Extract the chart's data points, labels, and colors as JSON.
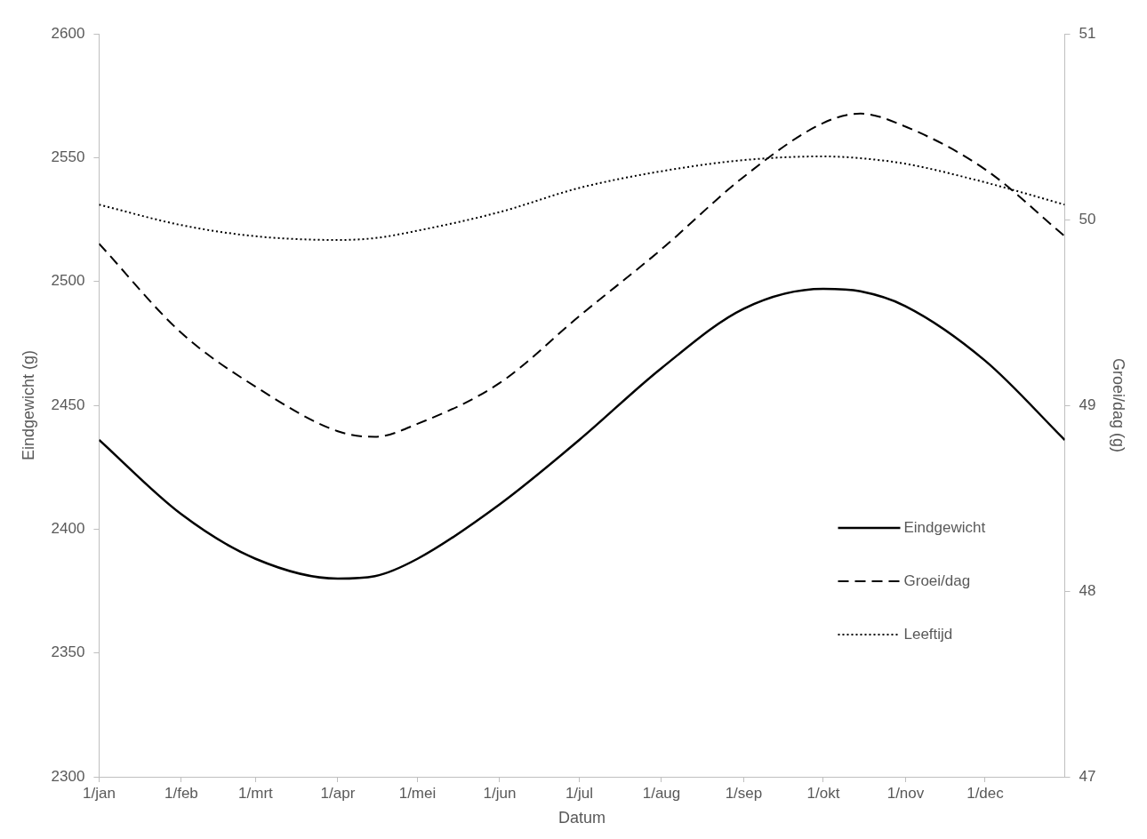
{
  "chart_data": {
    "type": "line",
    "xlabel": "Datum",
    "ylabel": "Eindgewicht (g)",
    "y2label": "Groei/dag (g)",
    "x": [
      "--01-01",
      "--02-01",
      "--03-01",
      "--04-01",
      "--04-15",
      "--05-01",
      "--06-01",
      "--07-01",
      "--08-01",
      "--09-01",
      "--10-01",
      "--10-15",
      "--11-01",
      "--12-01",
      "--12-31"
    ],
    "series": [
      {
        "name": "Eindgewicht",
        "color": "#000000",
        "line_style": "solid",
        "values": [
          2436,
          2406,
          2388,
          2380,
          2381,
          2388,
          2410,
          2436,
          2465,
          2489,
          2497,
          2496,
          2490,
          2468,
          2436
        ]
      },
      {
        "name": "Groei/dag",
        "color": "#000000",
        "line_style": "dashed",
        "axis": "y2",
        "values": [
          49.87,
          49.39,
          49.1,
          48.86,
          48.83,
          48.9,
          49.12,
          49.48,
          49.84,
          50.23,
          50.52,
          50.57,
          50.5,
          50.27,
          49.91
        ]
      },
      {
        "name": "Leeftijd",
        "color": "#000000",
        "line_style": "dotted",
        "axis": "y2",
        "values": [
          50.08,
          49.97,
          49.91,
          49.89,
          49.9,
          49.94,
          50.04,
          50.17,
          50.26,
          50.32,
          50.34,
          50.33,
          50.3,
          50.2,
          50.08
        ]
      }
    ],
    "xlim": [
      "--01-01",
      "--12-31"
    ],
    "xticks": [
      {
        "value": "--01-01",
        "label": "1/jan"
      },
      {
        "value": "--02-01",
        "label": "1/feb"
      },
      {
        "value": "--03-01",
        "label": "1/mrt"
      },
      {
        "value": "--04-01",
        "label": "1/apr"
      },
      {
        "value": "--05-01",
        "label": "1/mei"
      },
      {
        "value": "--06-01",
        "label": "1/jun"
      },
      {
        "value": "--07-01",
        "label": "1/jul"
      },
      {
        "value": "--08-01",
        "label": "1/aug"
      },
      {
        "value": "--09-01",
        "label": "1/sep"
      },
      {
        "value": "--10-01",
        "label": "1/okt"
      },
      {
        "value": "--11-01",
        "label": "1/nov"
      },
      {
        "value": "--12-01",
        "label": "1/dec"
      }
    ],
    "ylim": [
      2300,
      2600
    ],
    "yticks": [
      2300,
      2350,
      2400,
      2450,
      2500,
      2550,
      2600
    ],
    "y2lim": [
      47,
      51
    ],
    "y2ticks": [
      47,
      48,
      49,
      50,
      51
    ],
    "grid": false,
    "legend": "right",
    "marker": "none"
  }
}
